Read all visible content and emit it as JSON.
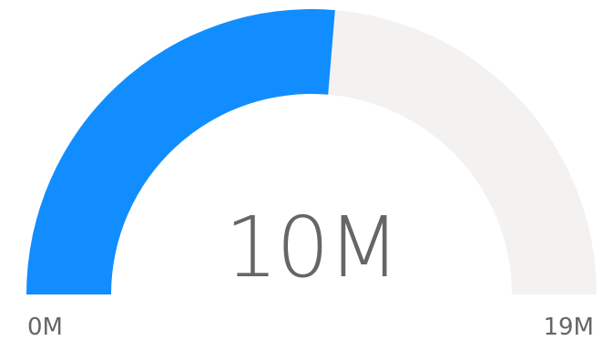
{
  "chart_data": {
    "type": "gauge",
    "value": 10,
    "min": 0,
    "max": 19,
    "unit": "M",
    "value_label": "10M",
    "min_label": "0M",
    "max_label": "19M",
    "colors": {
      "fill": "#118DFF",
      "track": "#F3F2F1",
      "text": "#666666"
    }
  }
}
